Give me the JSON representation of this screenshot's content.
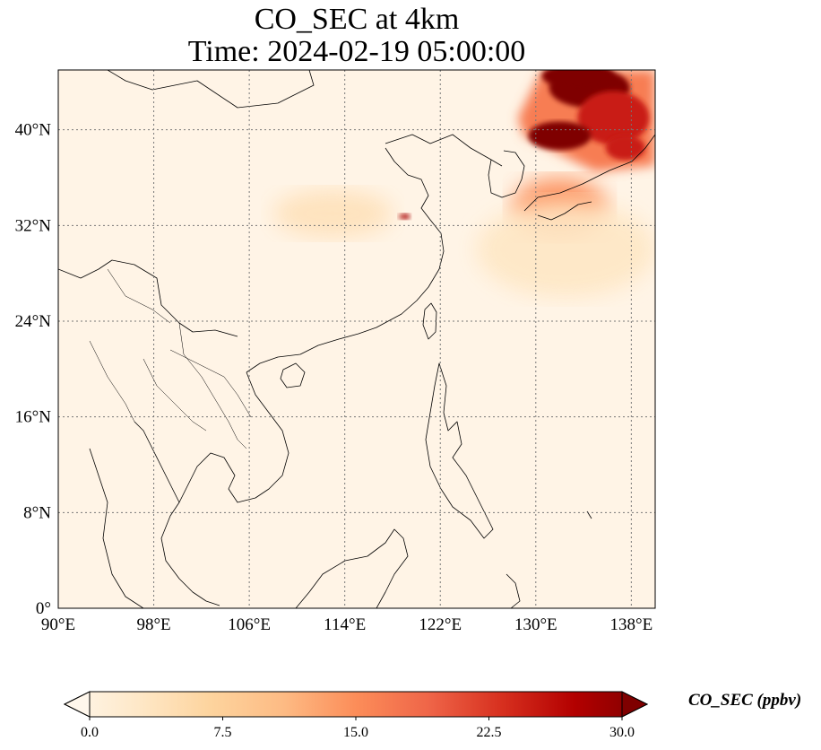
{
  "title": {
    "line1": "CO_SEC at 4km",
    "line2": "Time: 2024-02-19 05:00:00"
  },
  "map": {
    "projection": "PlateCarree",
    "lon_range": [
      90,
      140
    ],
    "lat_range": [
      0,
      45
    ],
    "lon_ticks": [
      {
        "value": 90,
        "label": "90°E"
      },
      {
        "value": 98,
        "label": "98°E"
      },
      {
        "value": 106,
        "label": "106°E"
      },
      {
        "value": 114,
        "label": "114°E"
      },
      {
        "value": 122,
        "label": "122°E"
      },
      {
        "value": 130,
        "label": "130°E"
      },
      {
        "value": 138,
        "label": "138°E"
      }
    ],
    "lat_ticks": [
      {
        "value": 0,
        "label": "0°"
      },
      {
        "value": 8,
        "label": "8°N"
      },
      {
        "value": 16,
        "label": "16°N"
      },
      {
        "value": 24,
        "label": "24°N"
      },
      {
        "value": 32,
        "label": "32°N"
      },
      {
        "value": 40,
        "label": "40°N"
      }
    ],
    "gridlines": "dotted",
    "background_color": "#fff4e6",
    "coastline_color": "#000000"
  },
  "chart_data": {
    "type": "heatmap",
    "variable": "CO_SEC",
    "colormap": "OrRd",
    "vmin": 0,
    "vmax": 30,
    "extend": "both",
    "features": [
      {
        "name": "northeast-high-plume",
        "lon": [
          128.5,
          140
        ],
        "lat": [
          36,
          45
        ],
        "value": 30
      },
      {
        "name": "japan-plume",
        "lon": [
          128,
          136
        ],
        "lat": [
          31,
          36
        ],
        "value": 15
      },
      {
        "name": "east-china-hotspot",
        "lon": [
          118.5,
          119.5
        ],
        "lat": [
          32.5,
          33.0
        ],
        "value": 27
      },
      {
        "name": "central-china-haze",
        "lon": [
          108,
          118
        ],
        "lat": [
          31,
          35
        ],
        "value": 5
      },
      {
        "name": "pacific-outflow",
        "lon": [
          125,
          140
        ],
        "lat": [
          26,
          34
        ],
        "value": 4
      }
    ]
  },
  "colorbar": {
    "label": "CO_SEC (ppbv)",
    "ticks": [
      {
        "value": 0,
        "label": "0.0"
      },
      {
        "value": 7.5,
        "label": "7.5"
      },
      {
        "value": 15,
        "label": "15.0"
      },
      {
        "value": 22.5,
        "label": "22.5"
      },
      {
        "value": 30,
        "label": "30.0"
      }
    ],
    "colors": [
      "#fff7ec",
      "#fee8c8",
      "#fdd49e",
      "#fdbb84",
      "#fc8d59",
      "#ef6548",
      "#d7301f",
      "#b30000",
      "#7f0000"
    ]
  }
}
